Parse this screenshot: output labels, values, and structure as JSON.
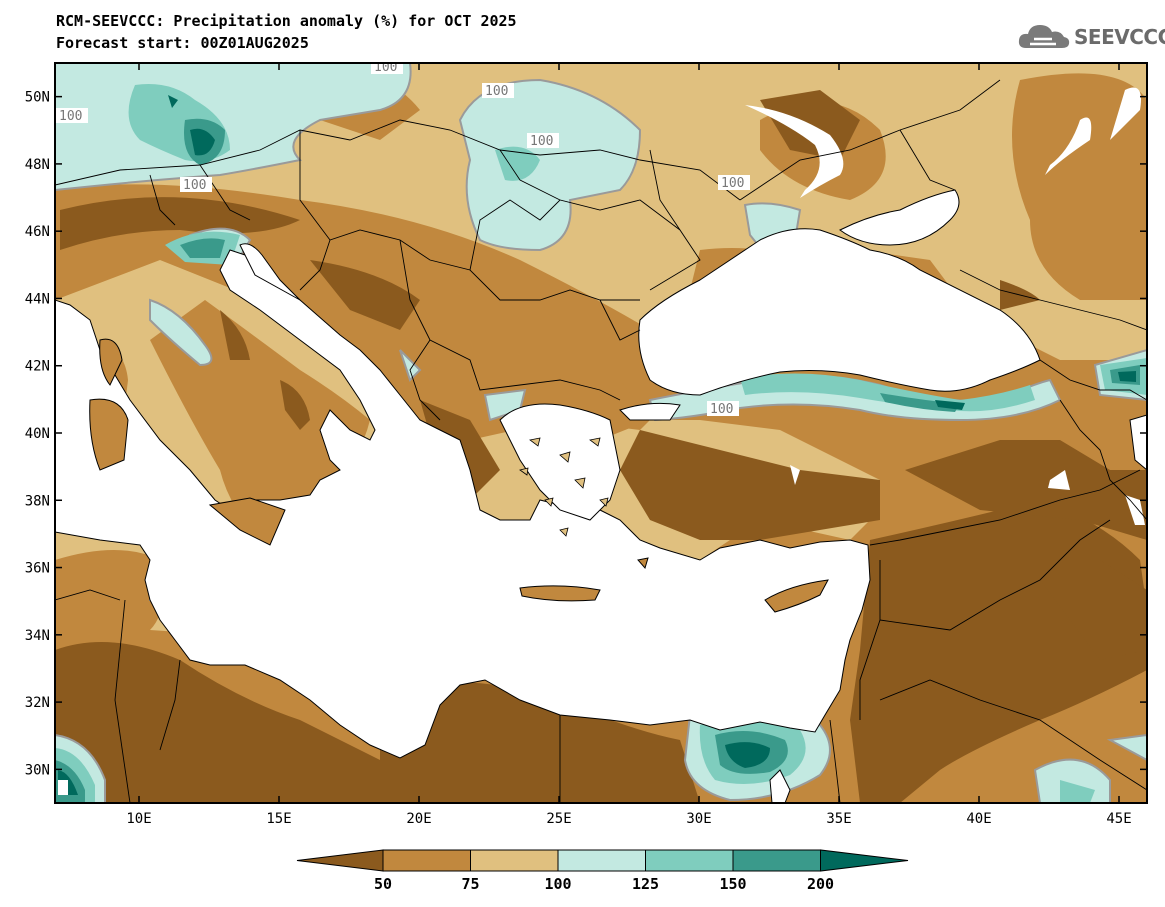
{
  "title": "RCM-SEEVCCC: Precipitation anomaly (%) for OCT 2025",
  "subtitle": "Forecast start: 00Z01AUG2025",
  "logo": {
    "text": "SEEVCCC",
    "icon": "cloud-icon"
  },
  "map": {
    "lon_range": [
      7,
      46
    ],
    "lat_range": [
      29,
      51
    ],
    "lat_ticks": [
      "50N",
      "48N",
      "46N",
      "44N",
      "42N",
      "40N",
      "38N",
      "36N",
      "34N",
      "32N",
      "30N"
    ],
    "lon_ticks": [
      "10E",
      "15E",
      "20E",
      "25E",
      "30E",
      "35E",
      "40E",
      "45E"
    ],
    "contour_labels": [
      "100",
      "100",
      "100",
      "100",
      "100",
      "100",
      "100"
    ]
  },
  "colorbar": {
    "levels": [
      "50",
      "75",
      "100",
      "125",
      "150",
      "200"
    ],
    "colors": [
      "#8b5a1e",
      "#c1883e",
      "#e0c07f",
      "#c3e9e1",
      "#7fcdbe",
      "#3a9a8b",
      "#00695c"
    ]
  },
  "colors": {
    "sea": "#ffffff",
    "border": "#000000",
    "contour": "#9a9a9a"
  }
}
